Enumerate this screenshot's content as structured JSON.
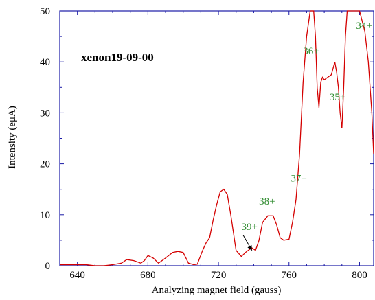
{
  "chart_data": {
    "type": "line",
    "title": "",
    "xlabel": "Analyzing magnet field (gauss)",
    "ylabel": "Intensity (eμA)",
    "xlim": [
      630,
      808
    ],
    "ylim": [
      0,
      50
    ],
    "xticks": [
      640,
      680,
      720,
      760,
      800
    ],
    "yticks": [
      0,
      10,
      20,
      30,
      40,
      50
    ],
    "grid": false,
    "color": "#d40000",
    "run_label": "xenon19-09-00",
    "series": [
      {
        "x": [
          630,
          645,
          650,
          655,
          660,
          665,
          668,
          672,
          676,
          678,
          680,
          683,
          686,
          690,
          694,
          697,
          700,
          703,
          706,
          708,
          711,
          713,
          715,
          717,
          719,
          721,
          723,
          725,
          727,
          730,
          733,
          736,
          739,
          741,
          743,
          745,
          748,
          751,
          753,
          755,
          757,
          760,
          762,
          764,
          766,
          768,
          770,
          772,
          773,
          774,
          775,
          776,
          777,
          778,
          779,
          780,
          782,
          784,
          786,
          787,
          788,
          789,
          790,
          791,
          792,
          793,
          794,
          795,
          798,
          800,
          803,
          805,
          807,
          808
        ],
        "y": [
          0.2,
          0.2,
          0.0,
          0.0,
          0.2,
          0.5,
          1.2,
          1.0,
          0.5,
          1.0,
          2.0,
          1.5,
          0.5,
          1.5,
          2.6,
          2.8,
          2.6,
          0.5,
          0.2,
          0.3,
          3.0,
          4.5,
          5.5,
          9.0,
          12.0,
          14.5,
          15.0,
          14.0,
          10.0,
          3.0,
          1.8,
          2.8,
          3.5,
          3.0,
          5.0,
          8.5,
          9.8,
          9.8,
          8.0,
          5.5,
          5.0,
          5.2,
          8.5,
          13.0,
          22.0,
          36.0,
          45.0,
          50.0,
          50.0,
          50.0,
          45.0,
          35.0,
          31.0,
          36.0,
          37.0,
          36.5,
          37.0,
          37.5,
          40.0,
          38.0,
          35.0,
          30.0,
          27.0,
          35.0,
          45.0,
          50.0,
          50.0,
          50.0,
          50.0,
          50.0,
          46.0,
          40.0,
          30.0,
          22.0
        ]
      }
    ],
    "annotations": [
      {
        "text": "34+",
        "x": 798,
        "y": 46.5
      },
      {
        "text": "35+",
        "x": 783,
        "y": 32.5
      },
      {
        "text": "36+",
        "x": 768,
        "y": 41.5
      },
      {
        "text": "37+",
        "x": 761,
        "y": 16.5
      },
      {
        "text": "38+",
        "x": 743,
        "y": 12.0
      },
      {
        "text": "39+",
        "x": 733,
        "y": 7.0
      }
    ],
    "arrow": {
      "from": [
        734,
        6.0
      ],
      "to": [
        739,
        3.0
      ]
    }
  }
}
